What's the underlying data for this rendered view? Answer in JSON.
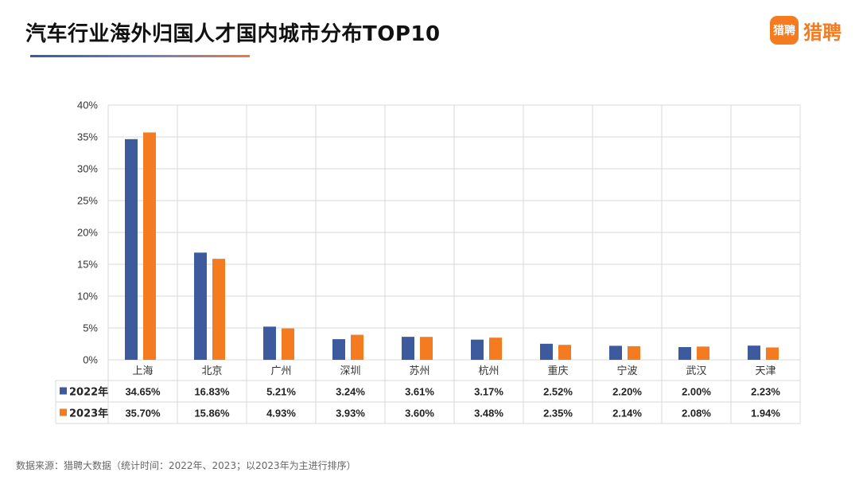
{
  "title": "汽车行业海外归国人才国内城市分布TOP10",
  "logo": {
    "badge": "猎聘",
    "text": "猎聘"
  },
  "source": "数据来源：猎聘大数据（统计时间：2022年、2023；以2023年为主进行排序）",
  "colors": {
    "series_2022": "#3d5a9c",
    "series_2023": "#f57b20",
    "grid": "#d9d9d9"
  },
  "chart_data": {
    "type": "bar",
    "title": "汽车行业海外归国人才国内城市分布TOP10",
    "categories": [
      "上海",
      "北京",
      "广州",
      "深圳",
      "苏州",
      "杭州",
      "重庆",
      "宁波",
      "武汉",
      "天津"
    ],
    "series": [
      {
        "name": "2022年",
        "values": [
          34.65,
          16.83,
          5.21,
          3.24,
          3.61,
          3.17,
          2.52,
          2.2,
          2.0,
          2.23
        ],
        "labels": [
          "34.65%",
          "16.83%",
          "5.21%",
          "3.24%",
          "3.61%",
          "3.17%",
          "2.52%",
          "2.20%",
          "2.00%",
          "2.23%"
        ]
      },
      {
        "name": "2023年",
        "values": [
          35.7,
          15.86,
          4.93,
          3.93,
          3.6,
          3.48,
          2.35,
          2.14,
          2.08,
          1.94
        ],
        "labels": [
          "35.70%",
          "15.86%",
          "4.93%",
          "3.93%",
          "3.60%",
          "3.48%",
          "2.35%",
          "2.14%",
          "2.08%",
          "1.94%"
        ]
      }
    ],
    "ylim": [
      0,
      40
    ],
    "yticks": [
      "0%",
      "5%",
      "10%",
      "15%",
      "20%",
      "25%",
      "30%",
      "35%",
      "40%"
    ],
    "xlabel": "",
    "ylabel": "",
    "grid": true,
    "legend": "data-table-left"
  }
}
